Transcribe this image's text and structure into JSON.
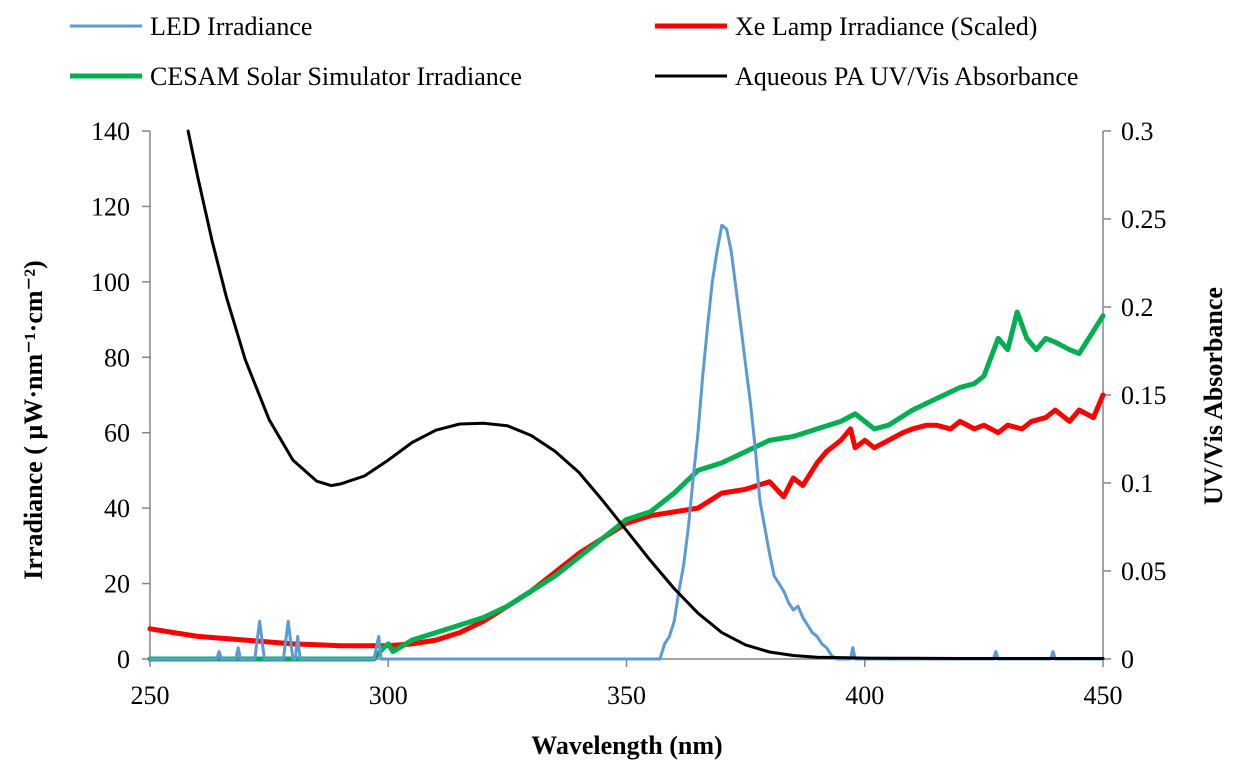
{
  "chart_data": {
    "type": "line",
    "xlabel": "Wavelength (nm)",
    "ylabel_left": "Irradiance ( µW·nm⁻¹·cm⁻²)",
    "ylabel_right": "UV/Vis Absorbance",
    "xlim": [
      250,
      450
    ],
    "ylim_left": [
      0,
      140
    ],
    "ylim_right": [
      0,
      0.3
    ],
    "x_ticks": [
      "250",
      "300",
      "350",
      "400",
      "450"
    ],
    "y_left_ticks": [
      "0",
      "20",
      "40",
      "60",
      "80",
      "100",
      "120",
      "140"
    ],
    "y_right_ticks": [
      "0",
      "0.05",
      "0.1",
      "0.15",
      "0.2",
      "0.25",
      "0.3"
    ],
    "grid": false,
    "legend_position": "top",
    "series": [
      {
        "name": "LED Irradiance",
        "color": "#5b9bd5",
        "axis": "left",
        "x": [
          250,
          264,
          264.5,
          265,
          266,
          268,
          268.5,
          269,
          272,
          273,
          274,
          275,
          278,
          279,
          280,
          280.5,
          281,
          281.5,
          282,
          297,
          298,
          298.5,
          299,
          300,
          357,
          358,
          359,
          360,
          361,
          362,
          363,
          364,
          365,
          366,
          367,
          368,
          369,
          370,
          371,
          372,
          373,
          374,
          375,
          376,
          377,
          378,
          379,
          380,
          381,
          382,
          383,
          384,
          385,
          386,
          387,
          388,
          389,
          390,
          391,
          392,
          393,
          394,
          395,
          396,
          397,
          397.5,
          398,
          399,
          427,
          427.5,
          428,
          439,
          439.5,
          440,
          450
        ],
        "y": [
          0,
          0,
          2,
          0,
          0,
          0,
          3,
          0,
          0,
          10,
          0,
          0,
          0,
          10,
          0,
          0,
          6,
          0,
          0,
          0,
          6,
          0,
          0,
          0,
          0,
          4,
          6,
          10,
          18,
          25,
          35,
          48,
          60,
          75,
          88,
          100,
          108,
          115,
          114,
          108,
          98,
          88,
          78,
          68,
          56,
          42,
          35,
          28,
          22,
          20,
          18,
          15,
          13,
          14,
          11,
          9,
          7,
          6,
          4,
          3,
          1,
          0,
          0,
          0,
          0,
          3,
          0,
          0,
          0,
          2,
          0,
          0,
          2,
          0,
          0
        ]
      },
      {
        "name": "Xe Lamp Irradiance (Scaled)",
        "color": "#ff0000",
        "axis": "left",
        "x": [
          250,
          255,
          260,
          265,
          270,
          275,
          280,
          285,
          290,
          295,
          300,
          305,
          310,
          315,
          320,
          325,
          330,
          335,
          340,
          345,
          350,
          355,
          360,
          365,
          370,
          375,
          380,
          383,
          385,
          387,
          390,
          392,
          395,
          397,
          398,
          400,
          402,
          405,
          408,
          410,
          413,
          415,
          418,
          420,
          423,
          425,
          428,
          430,
          433,
          435,
          438,
          440,
          443,
          445,
          448,
          450
        ],
        "y": [
          8,
          7,
          6,
          5.5,
          5,
          4.5,
          4,
          3.8,
          3.5,
          3.5,
          3.5,
          4,
          5,
          7,
          10,
          14,
          18,
          23,
          28,
          32,
          36,
          38,
          39,
          40,
          44,
          45,
          47,
          43,
          48,
          46,
          52,
          55,
          58,
          61,
          56,
          58,
          56,
          58,
          60,
          61,
          62,
          62,
          61,
          63,
          61,
          62,
          60,
          62,
          61,
          63,
          64,
          66,
          63,
          66,
          64,
          70
        ]
      },
      {
        "name": "CESAM Solar Simulator Irradiance",
        "color": "#00b050",
        "axis": "left",
        "x": [
          250,
          260,
          270,
          280,
          290,
          297,
          299,
          300,
          301,
          305,
          310,
          315,
          320,
          325,
          330,
          335,
          340,
          345,
          350,
          355,
          360,
          365,
          370,
          375,
          380,
          385,
          390,
          395,
          398,
          400,
          402,
          405,
          410,
          415,
          420,
          423,
          425,
          428,
          430,
          432,
          434,
          436,
          438,
          440,
          443,
          445,
          448,
          450
        ],
        "y": [
          0,
          0,
          0,
          0,
          0,
          0,
          3,
          4,
          2,
          5,
          7,
          9,
          11,
          14,
          18,
          22,
          27,
          32,
          37,
          39,
          44,
          50,
          52,
          55,
          58,
          59,
          61,
          63,
          65,
          63,
          61,
          62,
          66,
          69,
          72,
          73,
          75,
          85,
          82,
          92,
          85,
          82,
          85,
          84,
          82,
          81,
          87,
          91
        ]
      },
      {
        "name": "Aqueous PA UV/Vis Absorbance",
        "color": "#000000",
        "axis": "right",
        "x": [
          258,
          260,
          263,
          266,
          270,
          275,
          280,
          285,
          288,
          290,
          295,
          300,
          305,
          310,
          315,
          320,
          325,
          330,
          335,
          340,
          345,
          350,
          355,
          360,
          365,
          370,
          375,
          380,
          385,
          390,
          395,
          400,
          410,
          420,
          430,
          440,
          450
        ],
        "y": [
          0.3,
          0.274,
          0.238,
          0.206,
          0.17,
          0.136,
          0.113,
          0.101,
          0.0985,
          0.0995,
          0.104,
          0.113,
          0.123,
          0.13,
          0.1335,
          0.134,
          0.1325,
          0.127,
          0.118,
          0.106,
          0.09,
          0.073,
          0.056,
          0.04,
          0.026,
          0.015,
          0.008,
          0.004,
          0.002,
          0.001,
          0.0008,
          0.0005,
          0.0004,
          0.0003,
          0.0003,
          0.0003,
          0.0003
        ]
      }
    ]
  }
}
